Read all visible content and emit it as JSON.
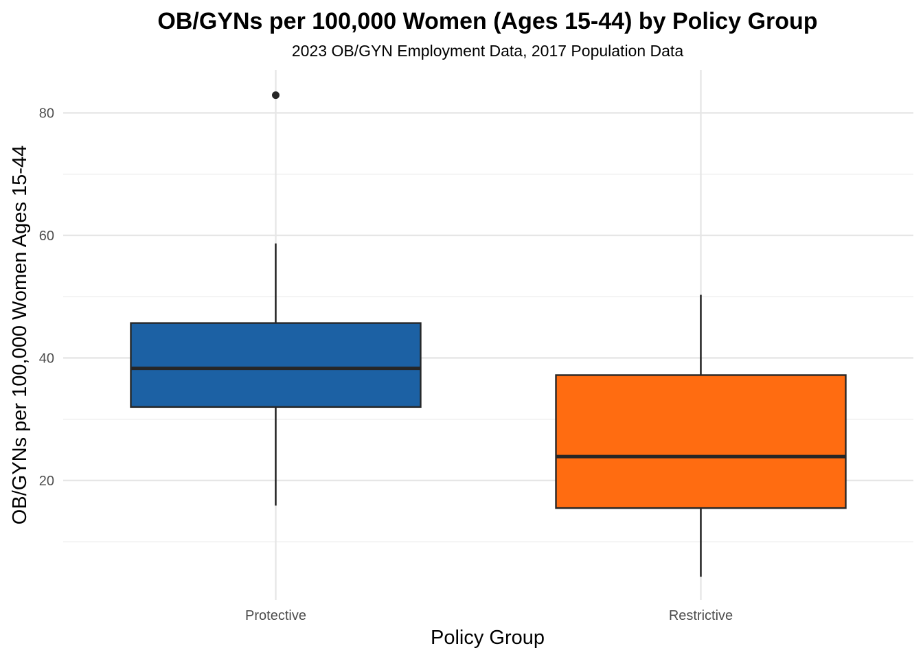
{
  "chart_data": {
    "type": "boxplot",
    "title": "OB/GYNs per 100,000 Women (Ages 15-44) by Policy Group",
    "subtitle": "2023 OB/GYN Employment Data, 2017 Population Data",
    "xlabel": "Policy Group",
    "ylabel": "OB/GYNs per 100,000 Women Ages 15-44",
    "ylim": [
      0.5,
      87
    ],
    "y_major_ticks": [
      20,
      40,
      60,
      80
    ],
    "y_minor_ticks": [
      10,
      30,
      50,
      70
    ],
    "y_tick_labels": [
      "20",
      "40",
      "60",
      "80"
    ],
    "grid": true,
    "legend": "none",
    "categories": [
      "Protective",
      "Restrictive"
    ],
    "groups": [
      {
        "category": "Protective",
        "color": "#1c61a4",
        "whisker_low": 15.9,
        "q1": 32.0,
        "median": 38.3,
        "q3": 45.7,
        "whisker_high": 58.7,
        "outliers": [
          82.9
        ]
      },
      {
        "category": "Restrictive",
        "color": "#ff6c11",
        "whisker_low": 4.3,
        "q1": 15.5,
        "median": 23.9,
        "q3": 37.2,
        "whisker_high": 50.3,
        "outliers": []
      }
    ]
  }
}
